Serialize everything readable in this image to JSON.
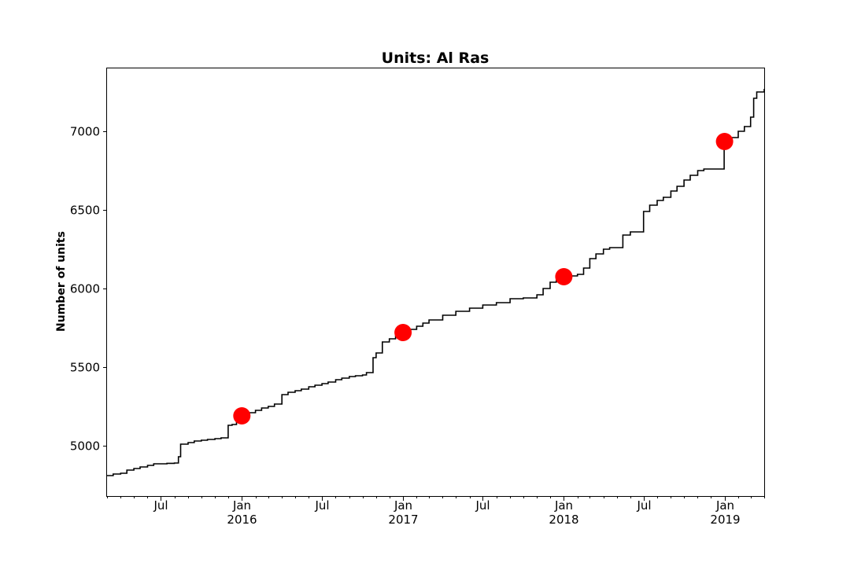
{
  "chart_data": {
    "type": "line",
    "title": "Units: Al Ras",
    "xlabel": "",
    "ylabel": "Number of units",
    "xlim": [
      "2015-03-01",
      "2019-04-01"
    ],
    "ylim": [
      4680,
      7400
    ],
    "yticks": [
      5000,
      5500,
      6000,
      6500,
      7000
    ],
    "xticks": [
      {
        "date": "2015-07-01",
        "label": "Jul",
        "year": ""
      },
      {
        "date": "2016-01-01",
        "label": "Jan",
        "year": "2016"
      },
      {
        "date": "2016-07-01",
        "label": "Jul",
        "year": ""
      },
      {
        "date": "2017-01-01",
        "label": "Jan",
        "year": "2017"
      },
      {
        "date": "2017-07-01",
        "label": "Jul",
        "year": ""
      },
      {
        "date": "2018-01-01",
        "label": "Jan",
        "year": "2018"
      },
      {
        "date": "2018-07-01",
        "label": "Jul",
        "year": ""
      },
      {
        "date": "2019-01-01",
        "label": "Jan",
        "year": "2019"
      }
    ],
    "grid": false,
    "series": [
      {
        "color": "#000000",
        "x": [
          "2015-03-01",
          "2015-03-15",
          "2015-04-01",
          "2015-04-15",
          "2015-05-01",
          "2015-05-15",
          "2015-06-01",
          "2015-06-15",
          "2015-07-01",
          "2015-07-15",
          "2015-08-01",
          "2015-08-10",
          "2015-08-15",
          "2015-09-01",
          "2015-09-15",
          "2015-10-01",
          "2015-10-15",
          "2015-11-01",
          "2015-11-15",
          "2015-12-01",
          "2015-12-10",
          "2015-12-20",
          "2016-01-01",
          "2016-01-15",
          "2016-02-01",
          "2016-02-15",
          "2016-03-01",
          "2016-03-15",
          "2016-04-01",
          "2016-04-15",
          "2016-05-01",
          "2016-05-15",
          "2016-06-01",
          "2016-06-15",
          "2016-07-01",
          "2016-07-15",
          "2016-08-01",
          "2016-08-15",
          "2016-09-01",
          "2016-09-15",
          "2016-10-01",
          "2016-10-10",
          "2016-10-25",
          "2016-11-01",
          "2016-11-15",
          "2016-12-01",
          "2016-12-15",
          "2017-01-01",
          "2017-01-15",
          "2017-02-01",
          "2017-02-15",
          "2017-03-01",
          "2017-04-01",
          "2017-05-01",
          "2017-06-01",
          "2017-07-01",
          "2017-08-01",
          "2017-09-01",
          "2017-10-01",
          "2017-11-01",
          "2017-11-15",
          "2017-12-01",
          "2017-12-15",
          "2018-01-01",
          "2018-01-15",
          "2018-02-01",
          "2018-02-15",
          "2018-03-01",
          "2018-03-15",
          "2018-04-01",
          "2018-04-15",
          "2018-05-01",
          "2018-05-15",
          "2018-06-01",
          "2018-06-15",
          "2018-07-01",
          "2018-07-15",
          "2018-08-01",
          "2018-08-15",
          "2018-09-01",
          "2018-09-15",
          "2018-10-01",
          "2018-10-15",
          "2018-11-01",
          "2018-11-15",
          "2018-12-01",
          "2018-12-15",
          "2018-12-20",
          "2018-12-31",
          "2019-01-15",
          "2019-02-01",
          "2019-02-15",
          "2019-03-01",
          "2019-03-08",
          "2019-03-15",
          "2019-04-01"
        ],
        "y": [
          4810,
          4820,
          4825,
          4845,
          4855,
          4865,
          4875,
          4885,
          4885,
          4888,
          4890,
          4930,
          5010,
          5020,
          5030,
          5035,
          5040,
          5045,
          5050,
          5130,
          5135,
          5150,
          5190,
          5210,
          5225,
          5240,
          5250,
          5265,
          5325,
          5340,
          5350,
          5360,
          5375,
          5385,
          5395,
          5405,
          5420,
          5430,
          5440,
          5445,
          5450,
          5465,
          5560,
          5590,
          5660,
          5680,
          5700,
          5720,
          5740,
          5760,
          5780,
          5800,
          5830,
          5855,
          5875,
          5895,
          5910,
          5935,
          5940,
          5960,
          6000,
          6040,
          6060,
          6075,
          6080,
          6090,
          6130,
          6190,
          6220,
          6250,
          6260,
          6260,
          6340,
          6360,
          6360,
          6490,
          6530,
          6560,
          6580,
          6620,
          6650,
          6690,
          6720,
          6750,
          6760,
          6760,
          6760,
          6760,
          6930,
          6960,
          7000,
          7030,
          7090,
          7210,
          7250,
          7270
        ]
      }
    ],
    "markers": {
      "color": "#ff0000",
      "points": [
        {
          "x": "2016-01-01",
          "y": 5190
        },
        {
          "x": "2017-01-01",
          "y": 5720
        },
        {
          "x": "2018-01-01",
          "y": 6075
        },
        {
          "x": "2019-01-01",
          "y": 6935
        }
      ]
    }
  }
}
